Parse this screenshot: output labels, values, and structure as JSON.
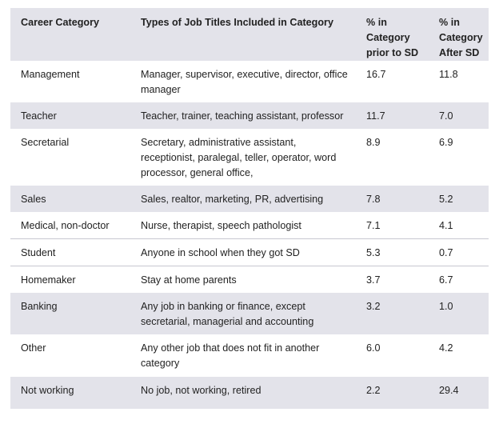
{
  "table": {
    "headers": [
      "Career Category",
      "Types of Job Titles Included in Category",
      "% in Category prior to SD",
      "% in Category After SD"
    ],
    "rows": [
      {
        "category": "Management",
        "titles": "Manager, supervisor, executive, director, office manager",
        "prior": "16.7",
        "after": "11.8"
      },
      {
        "category": "Teacher",
        "titles": "Teacher, trainer, teaching assistant, professor",
        "prior": "11.7",
        "after": "7.0"
      },
      {
        "category": "Secretarial",
        "titles": "Secretary, administrative assistant, receptionist, paralegal, teller, operator, word processor, general office,",
        "prior": "8.9",
        "after": "6.9"
      },
      {
        "category": "Sales",
        "titles": "Sales, realtor, marketing, PR, advertising",
        "prior": "7.8",
        "after": "5.2"
      },
      {
        "category": "Medical, non-doctor",
        "titles": "Nurse, therapist, speech pathologist",
        "prior": "7.1",
        "after": "4.1"
      },
      {
        "category": "Student",
        "titles": "Anyone in school when they got SD",
        "prior": "5.3",
        "after": "0.7"
      },
      {
        "category": "Homemaker",
        "titles": "Stay at home parents",
        "prior": "3.7",
        "after": "6.7"
      },
      {
        "category": "Banking",
        "titles": "Any job in banking or finance, except secretarial, managerial and accounting",
        "prior": "3.2",
        "after": "1.0"
      },
      {
        "category": "Other",
        "titles": "Any other job that does not fit in another category",
        "prior": "6.0",
        "after": "4.2"
      },
      {
        "category": "Not working",
        "titles": "No job, not working, retired",
        "prior": "2.2",
        "after": "29.4"
      }
    ]
  }
}
